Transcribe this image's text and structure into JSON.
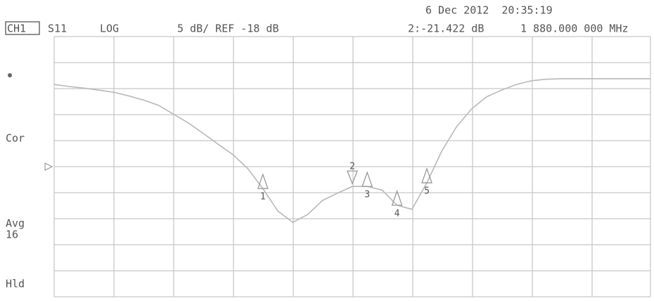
{
  "header": {
    "channel": "CH1",
    "parameter": "S11",
    "format": "LOG",
    "scale": "5 dB/ REF -18 dB",
    "datetime": "6 Dec 2012  20:35:19",
    "marker_readout": "2:-21.422 dB",
    "marker_freq": "1 880.000 000 MHz"
  },
  "side_labels": {
    "cor": "Cor",
    "avg": "Avg",
    "avg_count": "16",
    "hld": "Hld"
  },
  "chart_data": {
    "type": "line",
    "ylim": [
      -43,
      7
    ],
    "yticks": [
      -43,
      -38,
      -33,
      -28,
      -23,
      -18,
      -13,
      -8,
      -3,
      2,
      7
    ],
    "reference": -18,
    "grid": true,
    "color": "#b8b8b8",
    "values": [
      -2.2,
      -2.6,
      -2.9,
      -3.3,
      -3.7,
      -4.4,
      -5.2,
      -6.2,
      -7.9,
      -9.6,
      -11.6,
      -13.7,
      -15.7,
      -18.4,
      -22.2,
      -26.5,
      -28.7,
      -27.2,
      -24.5,
      -23.1,
      -21.8,
      -21.8,
      -22.5,
      -25.4,
      -26.2,
      -21.1,
      -15.0,
      -10.3,
      -6.9,
      -4.6,
      -3.3,
      -2.2,
      -1.5,
      -1.2,
      -1.1,
      -1.1,
      -1.1,
      -1.1,
      -1.1,
      -1.1,
      -1.1
    ],
    "markers": [
      {
        "label": "1",
        "at": 14
      },
      {
        "label": "2",
        "at": 20
      },
      {
        "label": "3",
        "at": 21
      },
      {
        "label": "4",
        "at": 23
      },
      {
        "label": "5",
        "at": 25
      }
    ]
  }
}
